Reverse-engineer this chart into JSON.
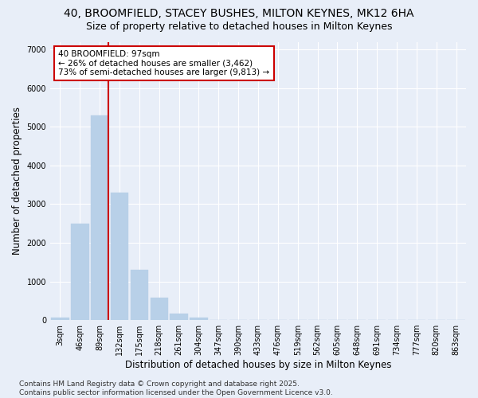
{
  "title1": "40, BROOMFIELD, STACEY BUSHES, MILTON KEYNES, MK12 6HA",
  "title2": "Size of property relative to detached houses in Milton Keynes",
  "xlabel": "Distribution of detached houses by size in Milton Keynes",
  "ylabel": "Number of detached properties",
  "categories": [
    "3sqm",
    "46sqm",
    "89sqm",
    "132sqm",
    "175sqm",
    "218sqm",
    "261sqm",
    "304sqm",
    "347sqm",
    "390sqm",
    "433sqm",
    "476sqm",
    "519sqm",
    "562sqm",
    "605sqm",
    "648sqm",
    "691sqm",
    "734sqm",
    "777sqm",
    "820sqm",
    "863sqm"
  ],
  "values": [
    60,
    2500,
    5300,
    3300,
    1300,
    580,
    175,
    65,
    10,
    4,
    1,
    0,
    0,
    0,
    0,
    0,
    0,
    0,
    0,
    0,
    0
  ],
  "bar_color": "#b8d0e8",
  "bar_edge_color": "#b8d0e8",
  "vline_color": "#cc0000",
  "annotation_text": "40 BROOMFIELD: 97sqm\n← 26% of detached houses are smaller (3,462)\n73% of semi-detached houses are larger (9,813) →",
  "annotation_box_color": "#ffffff",
  "annotation_box_edge": "#cc0000",
  "ylim": [
    0,
    7200
  ],
  "yticks": [
    0,
    1000,
    2000,
    3000,
    4000,
    5000,
    6000,
    7000
  ],
  "bg_color": "#e8eef8",
  "plot_bg": "#e8eef8",
  "footer": "Contains HM Land Registry data © Crown copyright and database right 2025.\nContains public sector information licensed under the Open Government Licence v3.0.",
  "title_fontsize": 10,
  "subtitle_fontsize": 9,
  "axis_label_fontsize": 8.5,
  "tick_fontsize": 7,
  "footer_fontsize": 6.5,
  "annot_fontsize": 7.5
}
